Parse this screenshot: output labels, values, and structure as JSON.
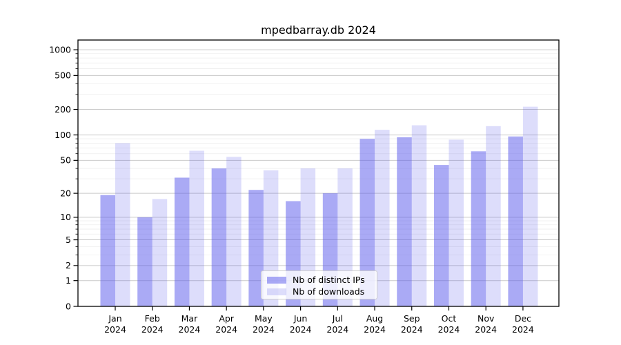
{
  "title": "mpedbarray.db 2024",
  "chart_data": {
    "type": "bar",
    "title": "mpedbarray.db 2024",
    "xlabel": "",
    "ylabel": "",
    "x_year": "2024",
    "categories": [
      "Jan",
      "Feb",
      "Mar",
      "Apr",
      "May",
      "Jun",
      "Jul",
      "Aug",
      "Sep",
      "Oct",
      "Nov",
      "Dec"
    ],
    "series": [
      {
        "name": "Nb of distinct IPs",
        "color": "rgba(85,85,235,0.5)",
        "values": [
          19,
          10,
          31,
          40,
          22,
          16,
          20,
          90,
          94,
          44,
          64,
          96
        ]
      },
      {
        "name": "Nb of downloads",
        "color": "rgba(85,85,235,0.2)",
        "values": [
          80,
          17,
          65,
          55,
          38,
          40,
          40,
          115,
          130,
          88,
          127,
          215
        ]
      }
    ],
    "y_scale": "log1p",
    "y_ticks": [
      0,
      1,
      2,
      5,
      10,
      20,
      50,
      100,
      200,
      500,
      1000
    ],
    "y_minor_ticks": [
      3,
      4,
      6,
      7,
      8,
      9,
      30,
      40,
      60,
      70,
      80,
      90,
      300,
      400,
      600,
      700,
      800,
      900
    ],
    "ylim": [
      0,
      1300
    ],
    "grid": true,
    "legend_position": "lower center"
  },
  "colors": {
    "major_grid": "#c9c9c9",
    "minor_grid": "#ededed",
    "axis": "#000000",
    "text": "#000000"
  },
  "legend": {
    "items": [
      {
        "label": "Nb of distinct IPs"
      },
      {
        "label": "Nb of downloads"
      }
    ]
  }
}
